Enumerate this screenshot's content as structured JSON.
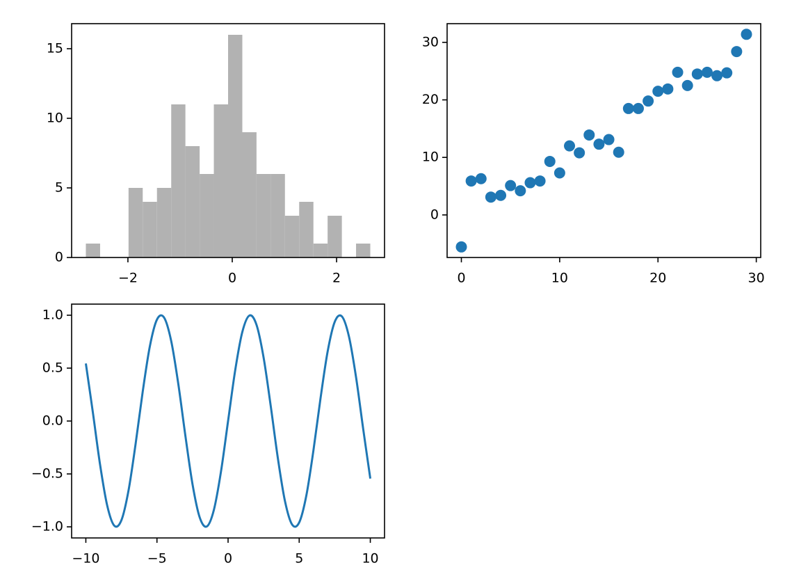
{
  "chart_data": [
    {
      "type": "histogram",
      "bins": [
        -2.806,
        -2.533,
        -2.261,
        -1.988,
        -1.716,
        -1.443,
        -1.17,
        -0.898,
        -0.625,
        -0.353,
        -0.08,
        0.193,
        0.465,
        0.738,
        1.01,
        1.283,
        1.556,
        1.828,
        2.101,
        2.373,
        2.646
      ],
      "values": [
        1,
        0,
        0,
        5,
        4,
        5,
        11,
        8,
        6,
        11,
        16,
        9,
        6,
        6,
        3,
        4,
        1,
        3,
        0,
        1
      ],
      "color": "#b2b2b2",
      "xlim": [
        -3.079,
        2.919
      ],
      "xticks": [
        {
          "value": -2,
          "label": "−2"
        },
        0,
        2
      ],
      "ylim": [
        0,
        16.8
      ],
      "yticks": [
        0,
        5,
        10,
        15
      ]
    },
    {
      "type": "scatter",
      "x": [
        0,
        1,
        2,
        3,
        4,
        5,
        6,
        7,
        8,
        9,
        10,
        11,
        12,
        13,
        14,
        15,
        16,
        17,
        18,
        19,
        20,
        21,
        22,
        23,
        24,
        25,
        26,
        27,
        28,
        29
      ],
      "values": [
        -5.56,
        5.9,
        6.3,
        3.1,
        3.4,
        5.1,
        4.2,
        5.6,
        5.9,
        9.3,
        7.3,
        12.0,
        10.8,
        13.9,
        12.3,
        13.1,
        10.9,
        18.5,
        18.5,
        19.8,
        21.5,
        21.9,
        24.8,
        22.5,
        24.5,
        24.8,
        24.2,
        24.7,
        28.4,
        31.4
      ],
      "color": "#1f77b4",
      "xlim": [
        -1.45,
        30.45
      ],
      "xticks": [
        0,
        10,
        20,
        30
      ],
      "ylim": [
        -7.4,
        33.25
      ],
      "yticks": [
        0,
        10,
        20,
        30
      ]
    },
    {
      "type": "line",
      "x": [
        -10,
        -9.5,
        -9,
        -8.5,
        -8,
        -7.5,
        -7,
        -6.5,
        -6,
        -5.5,
        -5,
        -4.5,
        -4,
        -3.5,
        -3,
        -2.5,
        -2,
        -1.5,
        -1,
        -0.5,
        0,
        0.5,
        1,
        1.5,
        2,
        2.5,
        3,
        3.5,
        4,
        4.5,
        5,
        5.5,
        6,
        6.5,
        7,
        7.5,
        8,
        8.5,
        9,
        9.5,
        10
      ],
      "values": [
        0.544,
        0.075,
        -0.412,
        -0.798,
        -0.989,
        -0.938,
        -0.657,
        -0.215,
        0.279,
        0.706,
        0.959,
        0.978,
        0.757,
        0.351,
        -0.141,
        -0.598,
        -0.909,
        -0.997,
        -0.841,
        -0.479,
        0,
        0.479,
        0.841,
        0.997,
        0.909,
        0.598,
        0.141,
        -0.351,
        -0.757,
        -0.978,
        -0.959,
        -0.706,
        -0.279,
        0.215,
        0.657,
        0.938,
        0.989,
        0.798,
        0.412,
        -0.075,
        -0.544
      ],
      "color": "#1f77b4",
      "xlim": [
        -11,
        11
      ],
      "xticks": [
        {
          "value": -10,
          "label": "−10"
        },
        {
          "value": -5,
          "label": "−5"
        },
        0,
        5,
        10
      ],
      "ylim": [
        -1.105,
        1.105
      ],
      "yticks": [
        {
          "value": -1,
          "label": "−1.0"
        },
        {
          "value": -0.5,
          "label": "−0.5"
        },
        {
          "value": 0,
          "label": "0.0"
        },
        {
          "value": 0.5,
          "label": "0.5"
        },
        {
          "value": 1,
          "label": "1.0"
        }
      ]
    }
  ]
}
